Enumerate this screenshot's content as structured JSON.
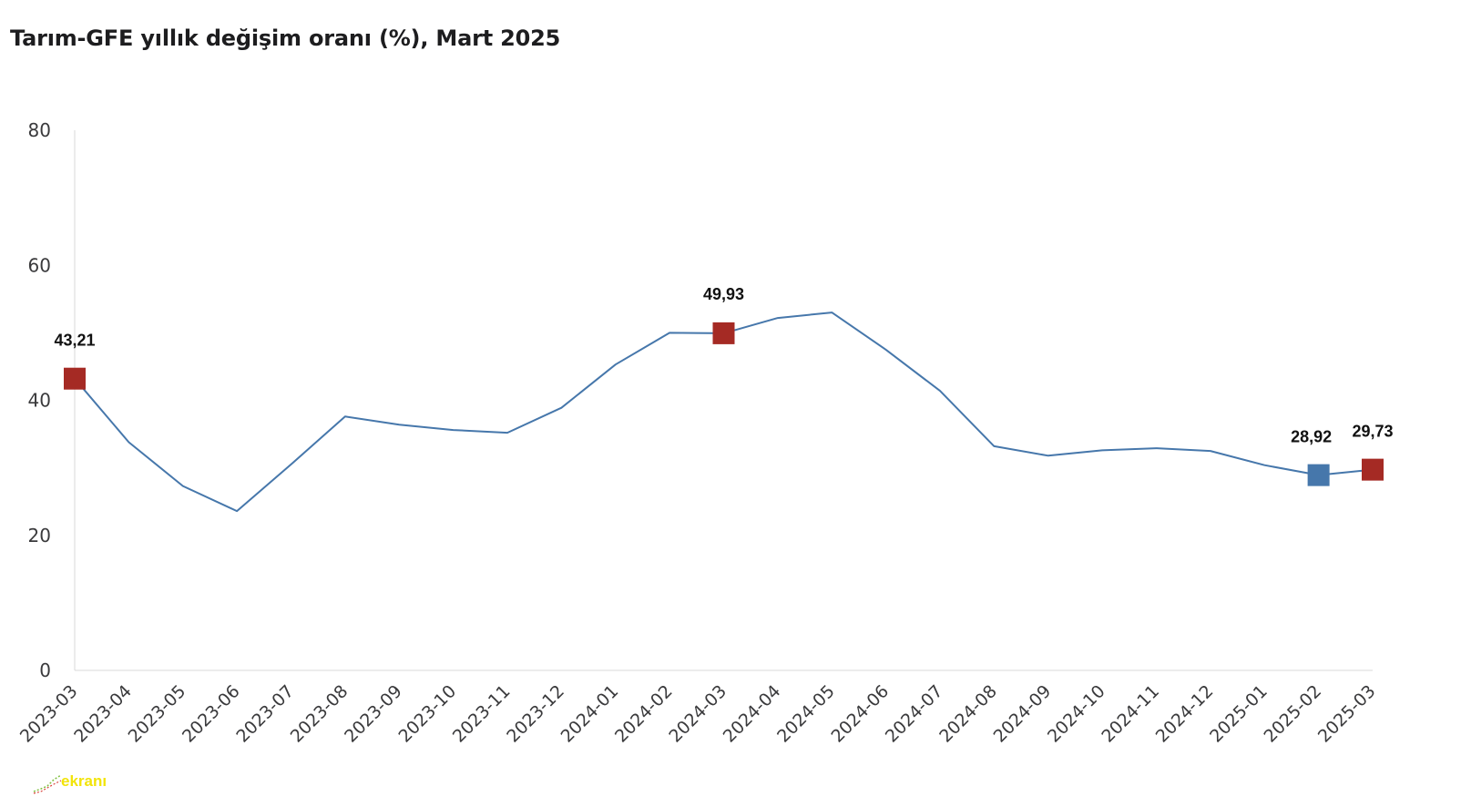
{
  "title": "Tarım-GFE yıllık değişim oranı (%), Mart 2025",
  "watermark": {
    "text": "ekranı",
    "color": "#f2e40a"
  },
  "chart_data": {
    "type": "line",
    "title": "Tarım-GFE yıllık değişim oranı (%), Mart 2025",
    "xlabel": "",
    "ylabel": "",
    "ylim": [
      0,
      80
    ],
    "yticks": [
      0,
      20,
      40,
      60,
      80
    ],
    "grid": false,
    "line_color": "#4677ab",
    "categories": [
      "2023-03",
      "2023-04",
      "2023-05",
      "2023-06",
      "2023-07",
      "2023-08",
      "2023-09",
      "2023-10",
      "2023-11",
      "2023-12",
      "2024-01",
      "2024-02",
      "2024-03",
      "2024-04",
      "2024-05",
      "2024-06",
      "2024-07",
      "2024-08",
      "2024-09",
      "2024-10",
      "2024-11",
      "2024-12",
      "2025-01",
      "2025-02",
      "2025-03"
    ],
    "series": [
      {
        "values": [
          43.21,
          33.8,
          27.3,
          23.6,
          30.5,
          37.6,
          36.4,
          35.6,
          35.2,
          38.9,
          45.3,
          50.0,
          49.93,
          52.2,
          53.0,
          47.5,
          41.4,
          33.2,
          31.8,
          32.6,
          32.9,
          32.5,
          30.4,
          28.92,
          29.73
        ]
      }
    ],
    "highlights": [
      {
        "category": "2023-03",
        "label": "43,21",
        "color": "#a52a24"
      },
      {
        "category": "2024-03",
        "label": "49,93",
        "color": "#a52a24"
      },
      {
        "category": "2025-02",
        "label": "28,92",
        "color": "#4677ab"
      },
      {
        "category": "2025-03",
        "label": "29,73",
        "color": "#a52a24"
      }
    ]
  }
}
